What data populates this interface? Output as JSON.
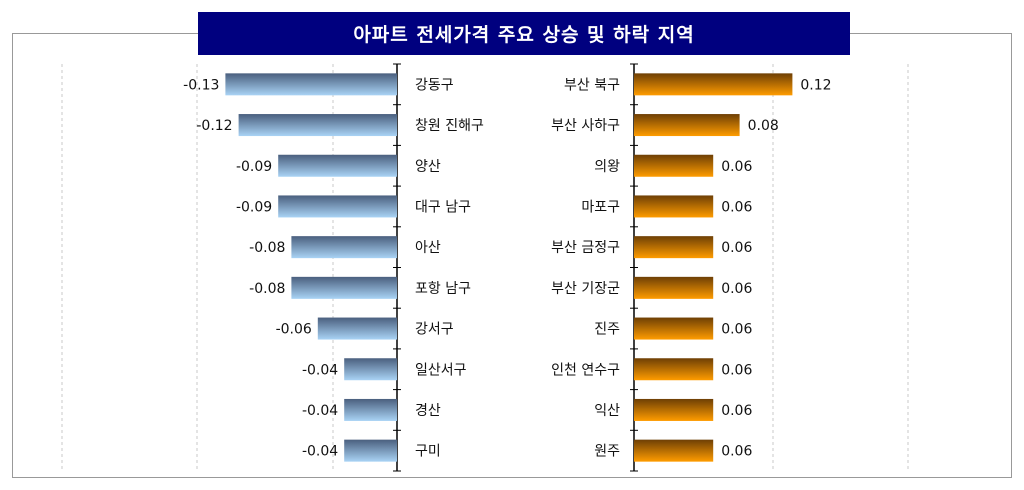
{
  "chart_data": [
    {
      "type": "bar",
      "orientation": "horizontal",
      "title": "아파트 전세가격 주요 상승 및 하락 지역",
      "categories": [
        "강동구",
        "창원 진해구",
        "양산",
        "대구 남구",
        "아산",
        "포항 남구",
        "강서구",
        "일산서구",
        "경산",
        "구미"
      ],
      "values": [
        -0.13,
        -0.12,
        -0.09,
        -0.09,
        -0.08,
        -0.08,
        -0.06,
        -0.04,
        -0.04,
        -0.04
      ],
      "labels": [
        "-0.13",
        "-0.12",
        "-0.09",
        "-0.09",
        "-0.08",
        "-0.08",
        "-0.06",
        "-0.04",
        "-0.04",
        "-0.04"
      ],
      "color_top": "#4a5f7e",
      "color_bottom": "#a9d3f5",
      "grid": true
    },
    {
      "type": "bar",
      "orientation": "horizontal",
      "categories": [
        "부산 북구",
        "부산 사하구",
        "의왕",
        "마포구",
        "부산 금정구",
        "부산 기장군",
        "진주",
        "인천 연수구",
        "익산",
        "원주"
      ],
      "values": [
        0.12,
        0.08,
        0.06,
        0.06,
        0.06,
        0.06,
        0.06,
        0.06,
        0.06,
        0.06
      ],
      "labels": [
        "0.12",
        "0.08",
        "0.06",
        "0.06",
        "0.06",
        "0.06",
        "0.06",
        "0.06",
        "0.06",
        "0.06"
      ],
      "color_top": "#6e3f05",
      "color_bottom": "#ff9c00",
      "grid": true
    }
  ]
}
